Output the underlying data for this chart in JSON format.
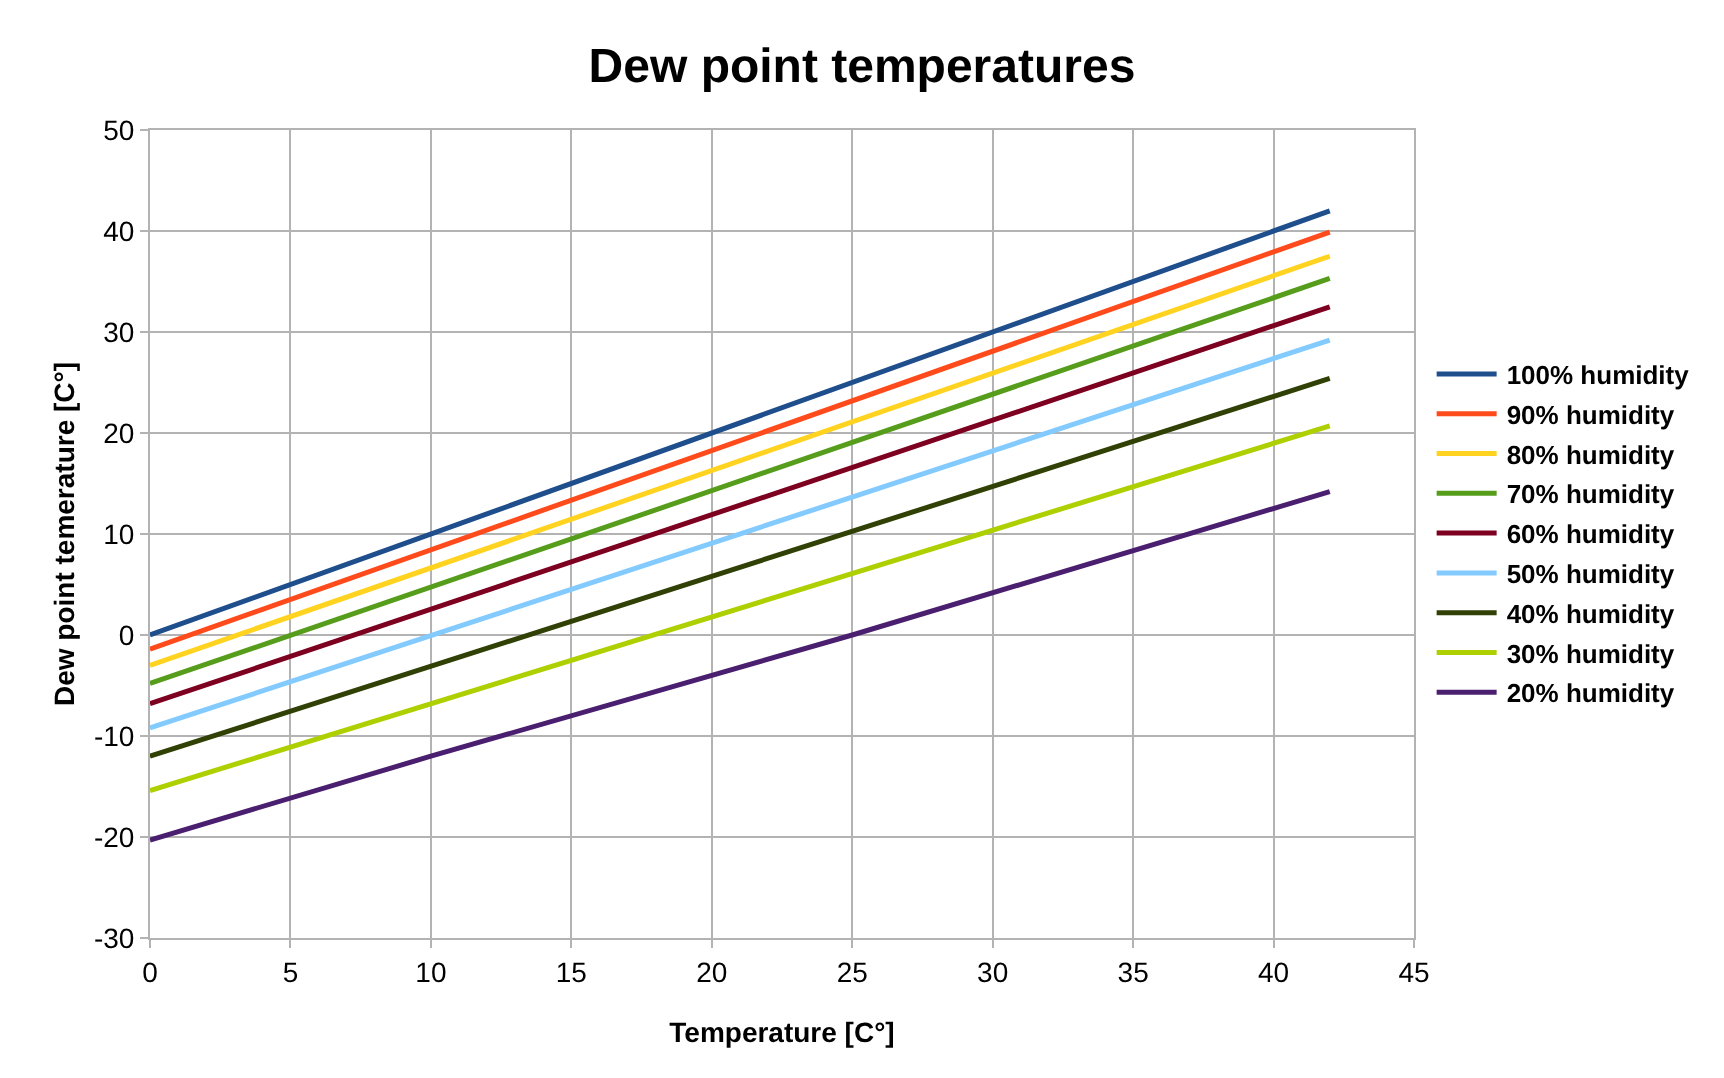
{
  "chart_data": {
    "type": "line",
    "title": "Dew point temperatures",
    "xlabel": "Temperature [C°]",
    "ylabel": "Dew point temerature [C°]",
    "x": [
      0,
      42
    ],
    "xlim": [
      0,
      45
    ],
    "xticks": [
      0,
      5,
      10,
      15,
      20,
      25,
      30,
      35,
      40,
      45
    ],
    "ylim": [
      -30,
      50
    ],
    "yticks": [
      -30,
      -20,
      -10,
      0,
      10,
      20,
      30,
      40,
      50
    ],
    "grid": true,
    "legend": "right",
    "marker": "none",
    "line_style": "solid",
    "series": [
      {
        "name": "100% humidity",
        "color": "#1f4e8c",
        "values": [
          0,
          42
        ]
      },
      {
        "name": "90% humidity",
        "color": "#ff4a1c",
        "values": [
          -1.4,
          39.9
        ]
      },
      {
        "name": "80% humidity",
        "color": "#ffd320",
        "values": [
          -3,
          37.5
        ]
      },
      {
        "name": "70% humidity",
        "color": "#579d1c",
        "values": [
          -4.8,
          35.3
        ]
      },
      {
        "name": "60% humidity",
        "color": "#7e0021",
        "values": [
          -6.8,
          32.5
        ]
      },
      {
        "name": "50% humidity",
        "color": "#83caff",
        "values": [
          -9.2,
          29.2
        ]
      },
      {
        "name": "40% humidity",
        "color": "#314004",
        "values": [
          -12,
          25.4
        ]
      },
      {
        "name": "30% humidity",
        "color": "#aecf00",
        "values": [
          -15.4,
          20.7
        ]
      },
      {
        "name": "20% humidity",
        "color": "#4b1f6f",
        "x": [
          0,
          10,
          25,
          42
        ],
        "values": [
          -20.3,
          -12,
          0,
          14.2
        ]
      }
    ]
  }
}
